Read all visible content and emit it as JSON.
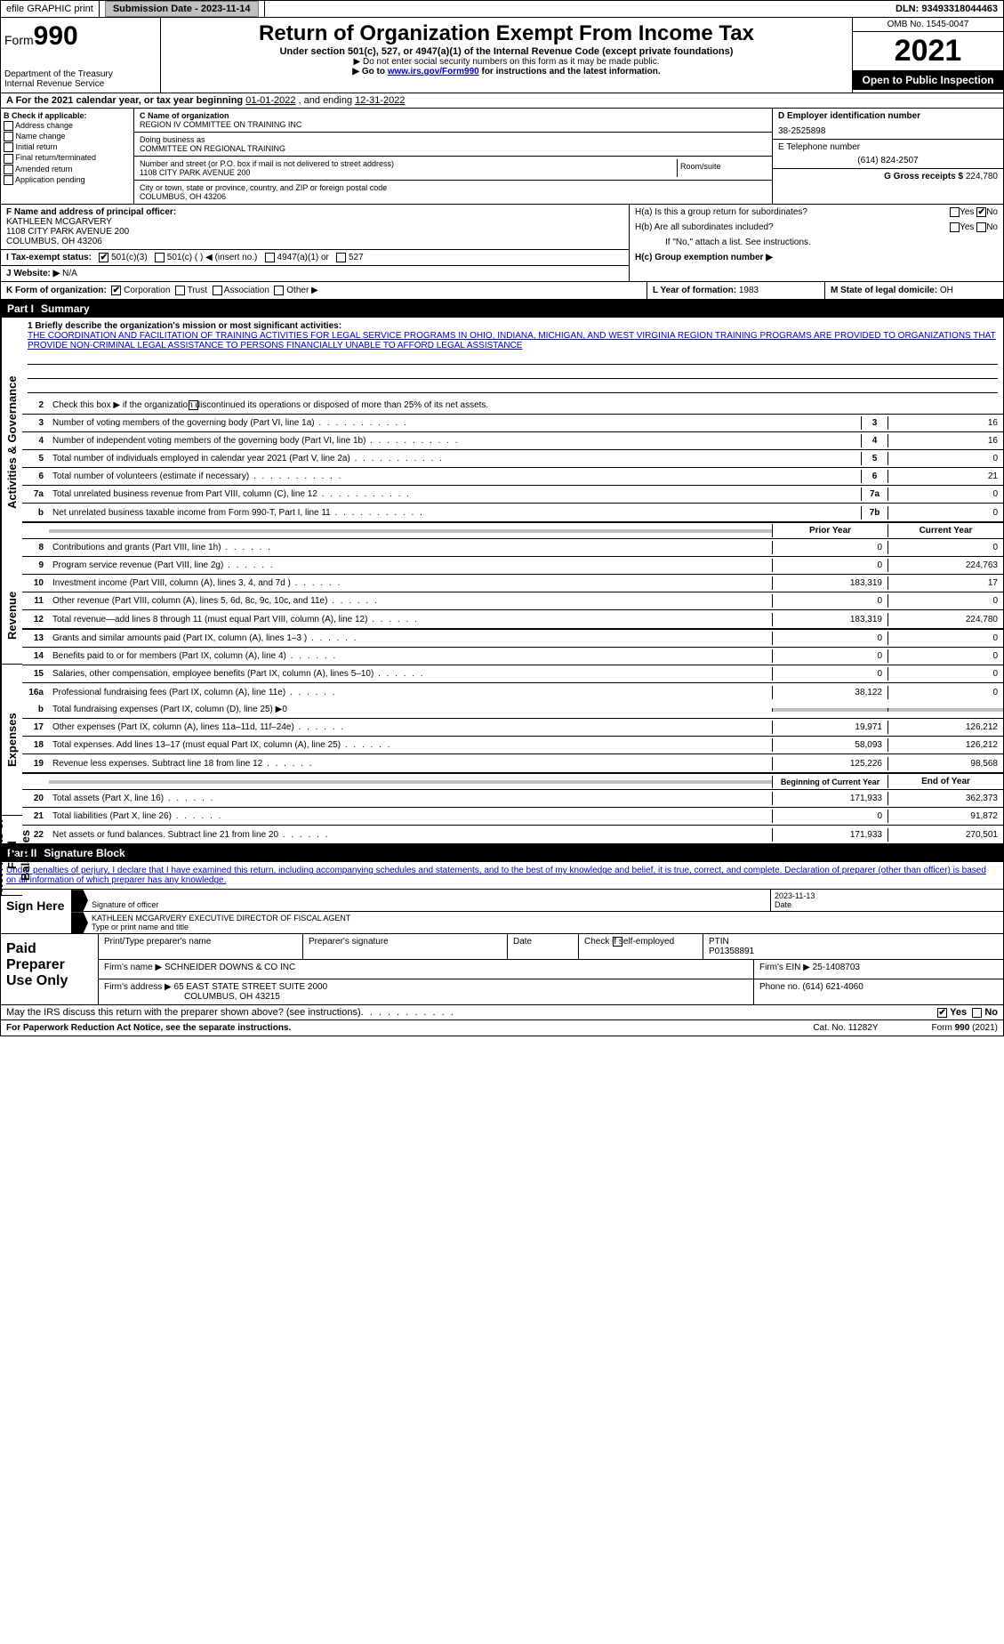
{
  "topbar": {
    "efile": "efile GRAPHIC print",
    "submission": "Submission Date - 2023-11-14",
    "dln": "DLN: 93493318044463"
  },
  "header": {
    "form_label": "Form",
    "form_num": "990",
    "title": "Return of Organization Exempt From Income Tax",
    "sub1": "Under section 501(c), 527, or 4947(a)(1) of the Internal Revenue Code (except private foundations)",
    "sub2": "▶ Do not enter social security numbers on this form as it may be made public.",
    "sub3_pre": "▶ Go to ",
    "sub3_link": "www.irs.gov/Form990",
    "sub3_post": " for instructions and the latest information.",
    "dept": "Department of the Treasury",
    "irs": "Internal Revenue Service",
    "omb": "OMB No. 1545-0047",
    "year": "2021",
    "open": "Open to Public Inspection"
  },
  "period": {
    "label_a": "A For the 2021 calendar year, or tax year beginning ",
    "begin": "01-01-2022",
    "mid": "   , and ending ",
    "end": "12-31-2022"
  },
  "colB": {
    "hdr": "B Check if applicable:",
    "opts": [
      "Address change",
      "Name change",
      "Initial return",
      "Final return/terminated",
      "Amended return",
      "Application pending"
    ]
  },
  "colC": {
    "name_lbl": "C Name of organization",
    "name": "REGION IV COMMITTEE ON TRAINING INC",
    "dba_lbl": "Doing business as",
    "dba": "COMMITTEE ON REGIONAL TRAINING",
    "addr_lbl": "Number and street (or P.O. box if mail is not delivered to street address)",
    "room_lbl": "Room/suite",
    "addr": "1108 CITY PARK AVENUE 200",
    "city_lbl": "City or town, state or province, country, and ZIP or foreign postal code",
    "city": "COLUMBUS, OH  43206"
  },
  "colD": {
    "ein_lbl": "D Employer identification number",
    "ein": "38-2525898",
    "tel_lbl": "E Telephone number",
    "tel": "(614) 824-2507",
    "gross_lbl": "G Gross receipts $ ",
    "gross": "224,780"
  },
  "f": {
    "lbl": "F  Name and address of principal officer:",
    "name": "KATHLEEN MCGARVERY",
    "addr1": "1108 CITY PARK AVENUE 200",
    "addr2": "COLUMBUS, OH  43206"
  },
  "h": {
    "a": "H(a)  Is this a group return for subordinates?",
    "a_val": "No",
    "b": "H(b)  Are all subordinates included?",
    "b_note": "If \"No,\" attach a list. See instructions.",
    "c": "H(c)  Group exemption number ▶"
  },
  "i": {
    "lbl": "I   Tax-exempt status:",
    "opt1": "501(c)(3)",
    "opt2": "501(c) (   ) ◀ (insert no.)",
    "opt3": "4947(a)(1) or",
    "opt4": "527"
  },
  "j": {
    "lbl": "J   Website: ▶",
    "val": "  N/A"
  },
  "k": {
    "lbl": "K Form of organization:",
    "o1": "Corporation",
    "o2": "Trust",
    "o3": "Association",
    "o4": "Other ▶"
  },
  "l": {
    "lbl": "L Year of formation: ",
    "val": "1983"
  },
  "m": {
    "lbl": "M State of legal domicile: ",
    "val": "OH"
  },
  "partI": {
    "hdr_num": "Part I",
    "hdr_txt": "Summary",
    "q1_lbl": "1  Briefly describe the organization's mission or most significant activities:",
    "q1_txt": "THE COORDINATION AND FACILITATION OF TRAINING ACTIVITIES FOR LEGAL SERVICE PROGRAMS IN OHIO, INDIANA, MICHIGAN, AND WEST VIRGINIA REGION TRAINING PROGRAMS ARE PROVIDED TO ORGANIZATIONS THAT PROVIDE NON-CRIMINAL LEGAL ASSISTANCE TO PERSONS FINANCIALLY UNABLE TO AFFORD LEGAL ASSISTANCE",
    "q2": "Check this box ▶      if the organization discontinued its operations or disposed of more than 25% of its net assets.",
    "rows_gov": [
      {
        "n": "3",
        "l": "Number of voting members of the governing body (Part VI, line 1a)",
        "box": "3",
        "v": "16"
      },
      {
        "n": "4",
        "l": "Number of independent voting members of the governing body (Part VI, line 1b)",
        "box": "4",
        "v": "16"
      },
      {
        "n": "5",
        "l": "Total number of individuals employed in calendar year 2021 (Part V, line 2a)",
        "box": "5",
        "v": "0"
      },
      {
        "n": "6",
        "l": "Total number of volunteers (estimate if necessary)",
        "box": "6",
        "v": "21"
      },
      {
        "n": "7a",
        "l": "Total unrelated business revenue from Part VIII, column (C), line 12",
        "box": "7a",
        "v": "0"
      },
      {
        "n": "b",
        "l": "Net unrelated business taxable income from Form 990-T, Part I, line 11",
        "box": "7b",
        "v": "0"
      }
    ],
    "col_prior": "Prior Year",
    "col_curr": "Current Year",
    "rows_rev": [
      {
        "n": "8",
        "l": "Contributions and grants (Part VIII, line 1h)",
        "p": "0",
        "c": "0"
      },
      {
        "n": "9",
        "l": "Program service revenue (Part VIII, line 2g)",
        "p": "0",
        "c": "224,763"
      },
      {
        "n": "10",
        "l": "Investment income (Part VIII, column (A), lines 3, 4, and 7d )",
        "p": "183,319",
        "c": "17"
      },
      {
        "n": "11",
        "l": "Other revenue (Part VIII, column (A), lines 5, 6d, 8c, 9c, 10c, and 11e)",
        "p": "0",
        "c": "0"
      },
      {
        "n": "12",
        "l": "Total revenue—add lines 8 through 11 (must equal Part VIII, column (A), line 12)",
        "p": "183,319",
        "c": "224,780"
      }
    ],
    "rows_exp": [
      {
        "n": "13",
        "l": "Grants and similar amounts paid (Part IX, column (A), lines 1–3 )",
        "p": "0",
        "c": "0"
      },
      {
        "n": "14",
        "l": "Benefits paid to or for members (Part IX, column (A), line 4)",
        "p": "0",
        "c": "0"
      },
      {
        "n": "15",
        "l": "Salaries, other compensation, employee benefits (Part IX, column (A), lines 5–10)",
        "p": "0",
        "c": "0"
      },
      {
        "n": "16a",
        "l": "Professional fundraising fees (Part IX, column (A), line 11e)",
        "p": "38,122",
        "c": "0"
      }
    ],
    "row_16b": {
      "n": "b",
      "l": "Total fundraising expenses (Part IX, column (D), line 25) ▶0"
    },
    "rows_exp2": [
      {
        "n": "17",
        "l": "Other expenses (Part IX, column (A), lines 11a–11d, 11f–24e)",
        "p": "19,971",
        "c": "126,212"
      },
      {
        "n": "18",
        "l": "Total expenses. Add lines 13–17 (must equal Part IX, column (A), line 25)",
        "p": "58,093",
        "c": "126,212"
      },
      {
        "n": "19",
        "l": "Revenue less expenses. Subtract line 18 from line 12",
        "p": "125,226",
        "c": "98,568"
      }
    ],
    "col_begin": "Beginning of Current Year",
    "col_end": "End of Year",
    "rows_net": [
      {
        "n": "20",
        "l": "Total assets (Part X, line 16)",
        "p": "171,933",
        "c": "362,373"
      },
      {
        "n": "21",
        "l": "Total liabilities (Part X, line 26)",
        "p": "0",
        "c": "91,872"
      },
      {
        "n": "22",
        "l": "Net assets or fund balances. Subtract line 21 from line 20",
        "p": "171,933",
        "c": "270,501"
      }
    ],
    "vtab_gov": "Activities & Governance",
    "vtab_rev": "Revenue",
    "vtab_exp": "Expenses",
    "vtab_net": "Net Assets or Fund Balances"
  },
  "partII": {
    "hdr_num": "Part II",
    "hdr_txt": "Signature Block",
    "intro": "Under penalties of perjury, I declare that I have examined this return, including accompanying schedules and statements, and to the best of my knowledge and belief, it is true, correct, and complete. Declaration of preparer (other than officer) is based on all information of which preparer has any knowledge.",
    "sign_here": "Sign Here",
    "sig_lbl": "Signature of officer",
    "date_lbl": "Date",
    "date_val": "2023-11-13",
    "name_val": "KATHLEEN MCGARVERY  EXECUTIVE DIRECTOR OF FISCAL AGENT",
    "name_lbl": "Type or print name and title",
    "paid": "Paid Preparer Use Only",
    "pt_name_lbl": "Print/Type preparer's name",
    "pt_sig_lbl": "Preparer's signature",
    "pt_date_lbl": "Date",
    "pt_check": "Check        if self-employed",
    "ptin_lbl": "PTIN",
    "ptin": "P01358891",
    "firm_name_lbl": "Firm's name    ▶ ",
    "firm_name": "SCHNEIDER DOWNS & CO INC",
    "firm_ein_lbl": "Firm's EIN ▶ ",
    "firm_ein": "25-1408703",
    "firm_addr_lbl": "Firm's address ▶ ",
    "firm_addr1": "65 EAST STATE STREET SUITE 2000",
    "firm_addr2": "COLUMBUS, OH  43215",
    "phone_lbl": "Phone no. ",
    "phone": "(614) 621-4060",
    "discuss": "May the IRS discuss this return with the preparer shown above? (see instructions)",
    "yes": "Yes",
    "no": "No"
  },
  "footer": {
    "left": "For Paperwork Reduction Act Notice, see the separate instructions.",
    "mid": "Cat. No. 11282Y",
    "right": "Form 990 (2021)"
  },
  "colors": {
    "link": "#0000cc",
    "shade": "#c0c0c0",
    "black": "#000000"
  }
}
